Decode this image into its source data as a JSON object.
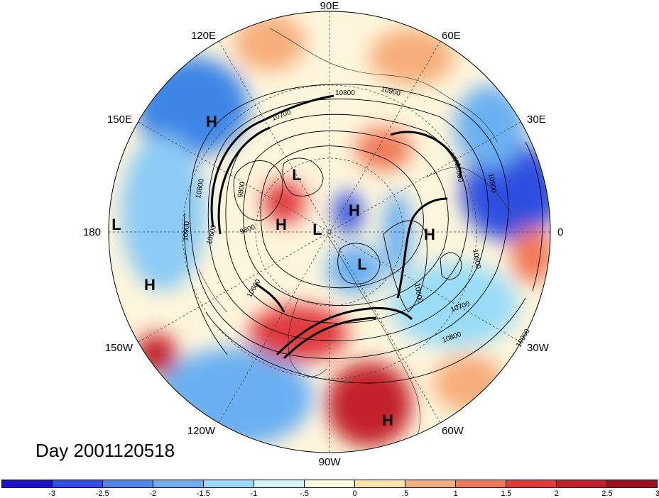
{
  "map": {
    "projection": "north-polar-stereographic",
    "longitude_labels": [
      {
        "id": "lon-90e",
        "text": "90E"
      },
      {
        "id": "lon-60e",
        "text": "60E"
      },
      {
        "id": "lon-30e",
        "text": "30E"
      },
      {
        "id": "lon-0",
        "text": "0"
      },
      {
        "id": "lon-30w",
        "text": "30W"
      },
      {
        "id": "lon-60w",
        "text": "60W"
      },
      {
        "id": "lon-90w",
        "text": "90W"
      },
      {
        "id": "lon-120w",
        "text": "120W"
      },
      {
        "id": "lon-150w",
        "text": "150W"
      },
      {
        "id": "lon-180",
        "text": "180"
      },
      {
        "id": "lon-150e",
        "text": "150E"
      },
      {
        "id": "lon-120e",
        "text": "120E"
      }
    ],
    "pressure_centers": [
      "H",
      "H",
      "H",
      "H",
      "H",
      "H",
      "L",
      "L",
      "L",
      "L"
    ],
    "contour_labels": [
      "10800",
      "10900",
      "10700",
      "10800",
      "9800",
      "10900",
      "10600",
      "9800",
      "10600",
      "10900",
      "10600",
      "10600",
      "10700",
      "10800",
      "10800",
      "10900"
    ]
  },
  "day_label": "Day 2001120518",
  "colorbar": {
    "colors": [
      "#1f12cc",
      "#2f50e0",
      "#4a88ee",
      "#6bb0f2",
      "#9adcf8",
      "#d4f4fb",
      "#fefbd8",
      "#fde3a4",
      "#f7ad7a",
      "#f17956",
      "#e03a3c",
      "#c2202c",
      "#9c0f1e"
    ],
    "tick_labels": [
      "-3",
      "-2.5",
      "-2",
      "-1.5",
      "-1",
      "-.5",
      "0",
      ".5",
      "1",
      "1.5",
      "2",
      "2.5",
      "3"
    ]
  }
}
